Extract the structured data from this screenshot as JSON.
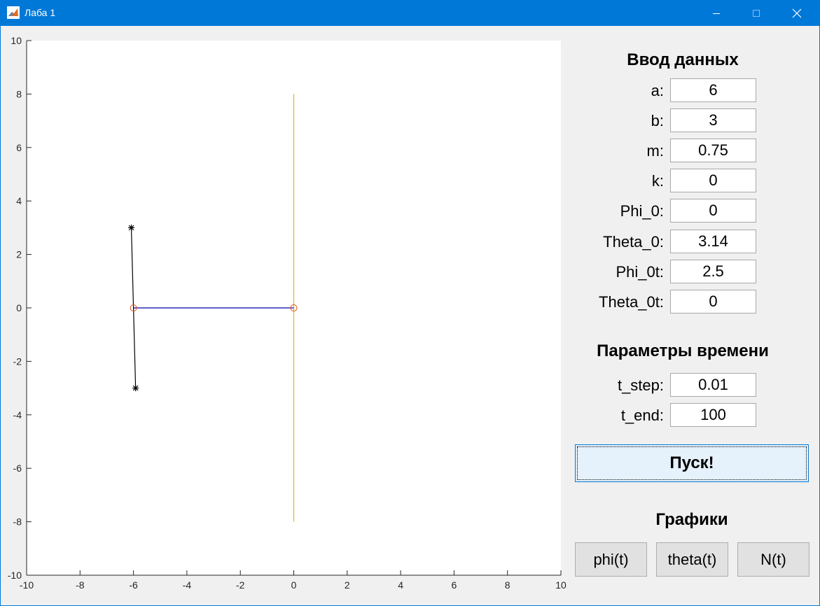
{
  "window": {
    "title": "Лаба 1"
  },
  "chart_data": {
    "type": "line",
    "xlim": [
      -10,
      10
    ],
    "ylim": [
      -10,
      10
    ],
    "x_ticks": [
      "-10",
      "-8",
      "-6",
      "-4",
      "-2",
      "0",
      "2",
      "4",
      "6",
      "8",
      "10"
    ],
    "y_ticks": [
      "10",
      "8",
      "6",
      "4",
      "2",
      "0",
      "-2",
      "-4",
      "-6",
      "-8",
      "-10"
    ],
    "grid": false,
    "series": [
      {
        "role": "vertical-guide",
        "color": "#edb120",
        "x": [
          0,
          0
        ],
        "y": [
          8,
          -8
        ]
      },
      {
        "role": "horizontal-rod",
        "color": "#0000aa",
        "x": [
          -6.0,
          0
        ],
        "y": [
          0,
          0
        ]
      },
      {
        "role": "pendulum-rod",
        "color": "#000000",
        "x": [
          -6.08,
          -5.92
        ],
        "y": [
          3,
          -3
        ]
      }
    ],
    "markers": [
      {
        "role": "pivot-circle",
        "shape": "circle",
        "color": "#d95319",
        "x": -6.0,
        "y": 0
      },
      {
        "role": "slider-circle",
        "shape": "circle",
        "color": "#d95319",
        "x": 0,
        "y": 0
      },
      {
        "role": "rod-end-top",
        "shape": "asterisk",
        "color": "#000000",
        "x": -6.08,
        "y": 3
      },
      {
        "role": "rod-end-bottom",
        "shape": "asterisk",
        "color": "#000000",
        "x": -5.92,
        "y": -3
      }
    ]
  },
  "input_section": {
    "heading": "Ввод данных",
    "fields": [
      {
        "label": "a:",
        "value": "6"
      },
      {
        "label": "b:",
        "value": "3"
      },
      {
        "label": "m:",
        "value": "0.75"
      },
      {
        "label": "k:",
        "value": "0"
      },
      {
        "label": "Phi_0:",
        "value": "0"
      },
      {
        "label": "Theta_0:",
        "value": "3.14"
      },
      {
        "label": "Phi_0t:",
        "value": "2.5"
      },
      {
        "label": "Theta_0t:",
        "value": "0"
      }
    ]
  },
  "time_section": {
    "heading": "Параметры времени",
    "fields": [
      {
        "label": "t_step:",
        "value": "0.01"
      },
      {
        "label": "t_end:",
        "value": "100"
      }
    ]
  },
  "run_button": {
    "label": "Пуск!"
  },
  "graphs_section": {
    "heading": "Графики",
    "buttons": [
      {
        "label": "phi(t)"
      },
      {
        "label": "theta(t)"
      },
      {
        "label": "N(t)"
      }
    ]
  }
}
